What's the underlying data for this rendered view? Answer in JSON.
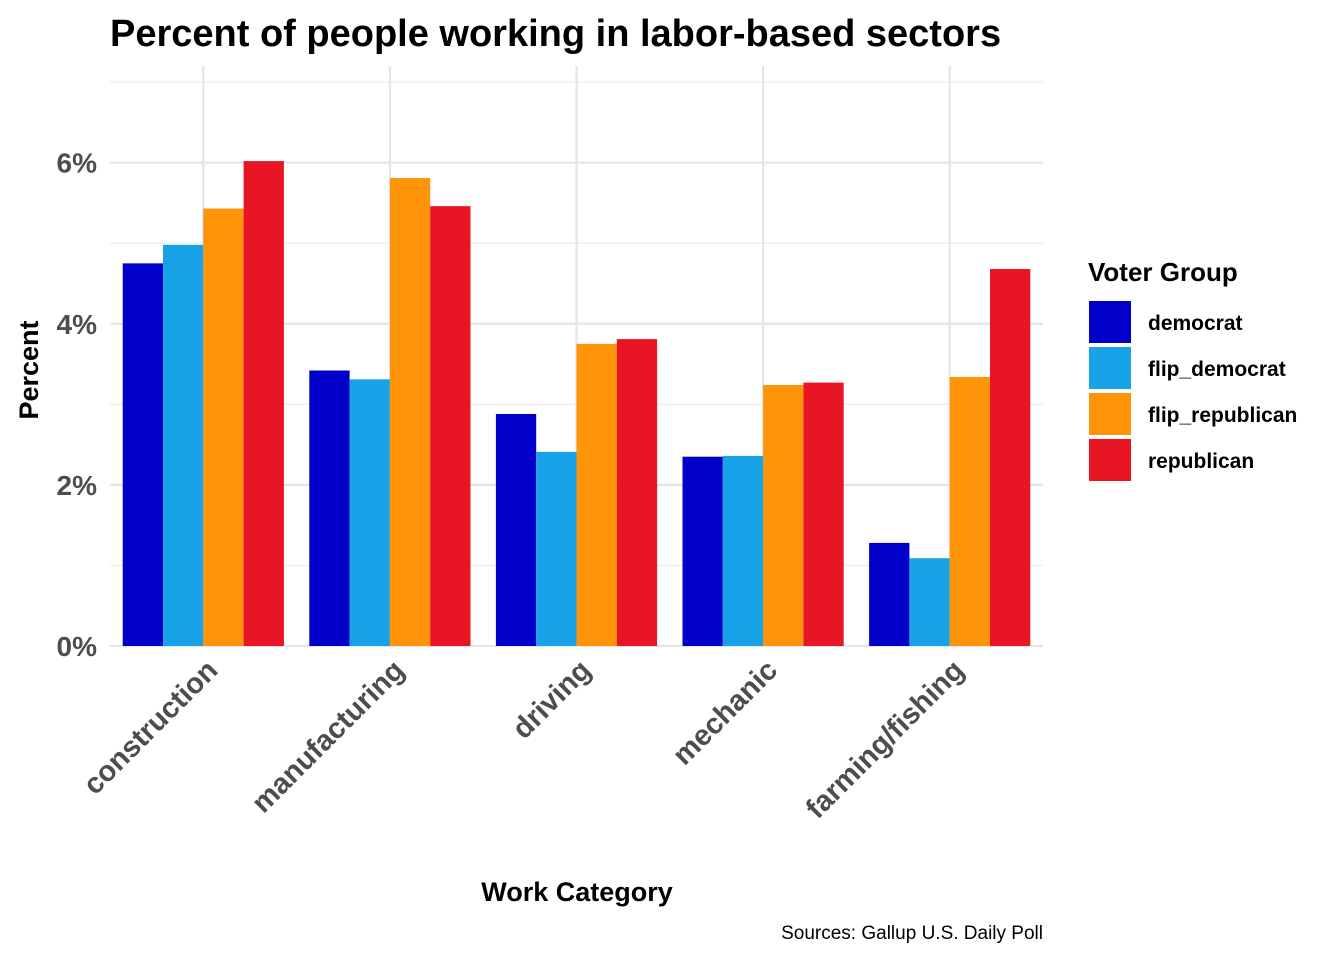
{
  "chart_data": {
    "type": "bar",
    "title": "Percent of people working in labor-based sectors",
    "xlabel": "Work Category",
    "ylabel": "Percent",
    "caption": "Sources: Gallup U.S. Daily Poll",
    "categories": [
      "construction",
      "manufacturing",
      "driving",
      "mechanic",
      "farming/fishing"
    ],
    "ylim": [
      0,
      7.2
    ],
    "yticks": [
      0,
      2,
      4,
      6
    ],
    "ytick_labels": [
      "0%",
      "2%",
      "4%",
      "6%"
    ],
    "grid": true,
    "legend": {
      "title": "Voter Group",
      "position": "right"
    },
    "series": [
      {
        "name": "democrat",
        "color": "#0000C8",
        "values": [
          4.75,
          3.42,
          2.88,
          2.35,
          1.28
        ]
      },
      {
        "name": "flip_democrat",
        "color": "#18A2E8",
        "values": [
          4.98,
          3.31,
          2.41,
          2.36,
          1.09
        ]
      },
      {
        "name": "flip_republican",
        "color": "#FF9408",
        "values": [
          5.43,
          5.81,
          3.75,
          3.24,
          3.34
        ]
      },
      {
        "name": "republican",
        "color": "#E81624",
        "values": [
          6.02,
          5.46,
          3.81,
          3.27,
          4.68
        ]
      }
    ]
  }
}
